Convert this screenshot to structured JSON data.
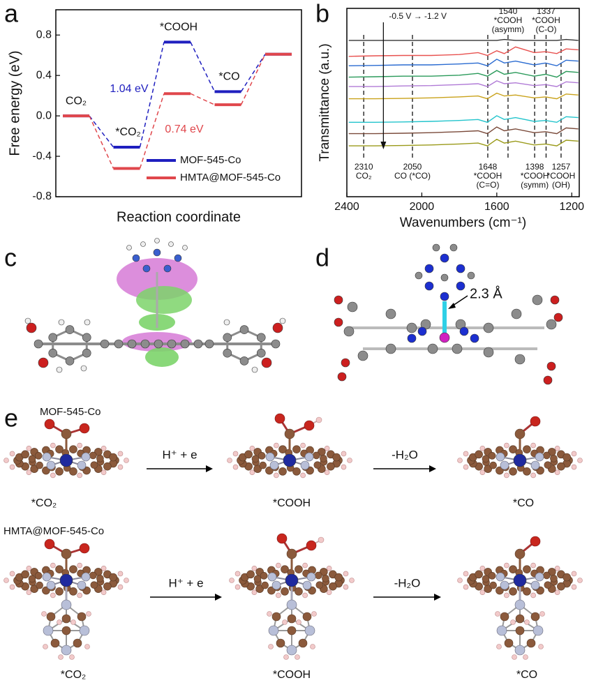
{
  "panel_labels": [
    "a",
    "b",
    "c",
    "d",
    "e"
  ],
  "chart_data": [
    {
      "type": "energy-diagram",
      "ylabel": "Free energy (eV)",
      "xlabel": "Reaction coordinate",
      "categories": [
        "CO₂",
        "*CO₂",
        "*COOH",
        "*CO",
        null
      ],
      "ylim": [
        -0.8,
        1.05
      ],
      "yticks": [
        -0.8,
        -0.4,
        {
          "value": 0,
          "label": "0.0"
        },
        0.4,
        0.8
      ],
      "series": [
        {
          "name": "MOF-545-Co",
          "color": "#1f1fbf",
          "values": [
            0,
            -0.31,
            0.73,
            0.24,
            0.61
          ]
        },
        {
          "name": "HMTA@MOF-545-Co",
          "color": "#e0474c",
          "values": [
            0,
            -0.52,
            0.22,
            0.11,
            0.61
          ]
        }
      ],
      "annotations": [
        {
          "text": "1.04 eV",
          "color": "#1f1fbf"
        },
        {
          "text": "0.74 eV",
          "color": "#e0474c"
        }
      ],
      "legend": "lower right"
    },
    {
      "type": "line",
      "ylabel": "Transmittance (a.u.)",
      "xlabel": "Wavenumbers (cm⁻¹)",
      "x": [
        2390,
        2250,
        2100,
        1950,
        1800,
        1700,
        1650,
        1600,
        1560,
        1500,
        1400,
        1340,
        1280,
        1230,
        1165
      ],
      "xlim": [
        2400,
        1160
      ],
      "xticks": [
        2400,
        2000,
        1600,
        1200
      ],
      "ylim": [
        0,
        10
      ],
      "series": [
        {
          "color": "#333333",
          "values": [
            8.3,
            8.3,
            8.3,
            8.3,
            8.3,
            8.3,
            8.3,
            8.3,
            8.35,
            8.3,
            8.3,
            8.3,
            8.3,
            8.35,
            8.3
          ]
        },
        {
          "color": "#e8514f",
          "values": [
            7.45,
            7.48,
            7.5,
            7.5,
            7.55,
            7.65,
            7.5,
            7.75,
            7.6,
            7.95,
            7.65,
            7.7,
            7.6,
            7.85,
            7.8
          ]
        },
        {
          "color": "#2a6bd1",
          "values": [
            6.95,
            6.97,
            7.0,
            7.0,
            7.05,
            7.1,
            6.95,
            7.3,
            7.1,
            7.2,
            7.0,
            7.1,
            6.95,
            7.25,
            7.2
          ]
        },
        {
          "color": "#2a9a5a",
          "values": [
            6.35,
            6.37,
            6.4,
            6.4,
            6.45,
            6.55,
            6.4,
            6.7,
            6.5,
            6.6,
            6.4,
            6.5,
            6.35,
            6.65,
            6.6
          ]
        },
        {
          "color": "#b07ad6",
          "values": [
            5.85,
            5.85,
            5.88,
            5.9,
            5.95,
            6.0,
            5.85,
            6.15,
            6.0,
            6.05,
            5.9,
            5.95,
            5.85,
            6.1,
            6.05
          ]
        },
        {
          "color": "#c9a21a",
          "values": [
            5.2,
            5.2,
            5.22,
            5.25,
            5.3,
            5.35,
            5.2,
            5.5,
            5.35,
            5.4,
            5.25,
            5.3,
            5.2,
            5.45,
            5.4
          ]
        },
        {
          "color": "#22c4cc",
          "values": [
            3.95,
            3.95,
            3.97,
            4.0,
            4.05,
            4.1,
            3.95,
            4.3,
            4.1,
            4.2,
            4.0,
            4.05,
            3.95,
            4.25,
            4.2
          ]
        },
        {
          "color": "#7a4a3a",
          "values": [
            3.35,
            3.35,
            3.37,
            3.4,
            3.45,
            3.5,
            3.35,
            3.7,
            3.5,
            3.6,
            3.4,
            3.45,
            3.35,
            3.65,
            3.6
          ]
        },
        {
          "color": "#9a9a1a",
          "values": [
            2.7,
            2.7,
            2.72,
            2.75,
            2.8,
            2.85,
            2.7,
            3.05,
            2.85,
            2.95,
            2.75,
            2.8,
            2.7,
            3.0,
            2.95
          ]
        }
      ],
      "annotation": "-0.5 V → -1.2 V",
      "peaks": [
        {
          "x": 2310,
          "lines": [
            "2310",
            "CO₂"
          ]
        },
        {
          "x": 2050,
          "lines": [
            "2050",
            "CO (*CO)"
          ]
        },
        {
          "x": 1648,
          "lines": [
            "1648",
            "*COOH",
            "(C=O)"
          ]
        },
        {
          "x": 1540,
          "lines": [
            "1540",
            "*COOH",
            "(asymm)"
          ]
        },
        {
          "x": 1398,
          "lines": [
            "1398",
            "*COOH",
            "(symm)"
          ]
        },
        {
          "x": 1337,
          "lines": [
            "1337",
            "*COOH",
            "(C-O)"
          ]
        },
        {
          "x": 1257,
          "lines": [
            "1257",
            "*COOH",
            "(OH)"
          ]
        }
      ]
    }
  ],
  "panel_d": {
    "annotation": "2.3 Å"
  },
  "panel_e": {
    "rows": [
      {
        "title": "MOF-545-Co",
        "steps": [
          "*CO₂",
          "*COOH",
          "*CO"
        ],
        "arrows": [
          "H⁺ + e",
          "-H₂O"
        ]
      },
      {
        "title": "HMTA@MOF-545-Co",
        "steps": [
          "*CO₂",
          "*COOH",
          "*CO"
        ],
        "arrows": [
          "H⁺ + e",
          "-H₂O"
        ]
      }
    ]
  }
}
